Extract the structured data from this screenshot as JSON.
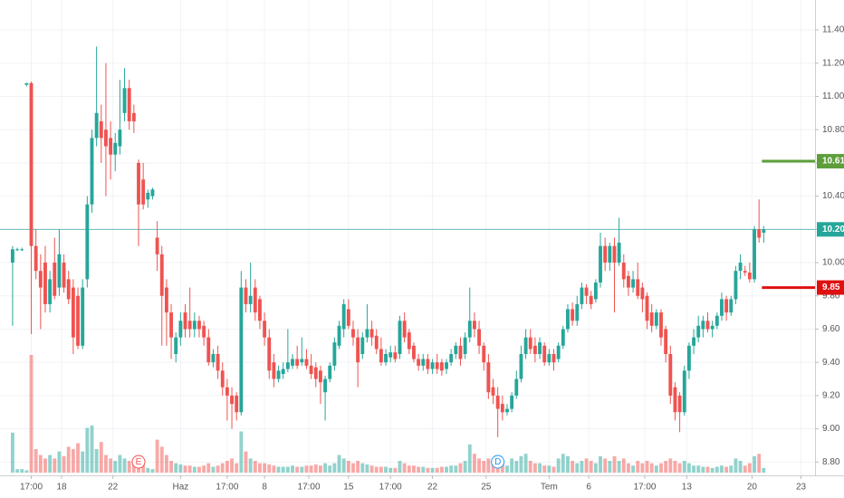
{
  "chart_data": {
    "type": "candlestick",
    "up_color": "#26a69a",
    "down_color": "#ef5350",
    "grid": true,
    "xlim": [
      -2.7,
      172
    ],
    "ylim": [
      8.72,
      11.58
    ],
    "yticks": [
      {
        "value": 8.8,
        "label": "8.80"
      },
      {
        "value": 9.0,
        "label": "9.00"
      },
      {
        "value": 9.2,
        "label": "9.20"
      },
      {
        "value": 9.4,
        "label": "9.40"
      },
      {
        "value": 9.6,
        "label": "9.60"
      },
      {
        "value": 9.8,
        "label": "9.80"
      },
      {
        "value": 10.0,
        "label": "10.00"
      },
      {
        "value": 10.2,
        "label": "10.20"
      },
      {
        "value": 10.4,
        "label": "10.40"
      },
      {
        "value": 10.6,
        "label": "10.60"
      },
      {
        "value": 10.8,
        "label": "10.80"
      },
      {
        "value": 11.0,
        "label": "11.00"
      },
      {
        "value": 11.2,
        "label": "11.20"
      },
      {
        "value": 11.4,
        "label": "11.40"
      }
    ],
    "xticks": [
      {
        "value": 4,
        "label": "17:00"
      },
      {
        "value": 10.5,
        "label": "18"
      },
      {
        "value": 21.5,
        "label": "22"
      },
      {
        "value": 36,
        "label": "Haz"
      },
      {
        "value": 46,
        "label": "17:00"
      },
      {
        "value": 54,
        "label": "8"
      },
      {
        "value": 63.5,
        "label": "17:00"
      },
      {
        "value": 72,
        "label": "15"
      },
      {
        "value": 81,
        "label": "17:00"
      },
      {
        "value": 90,
        "label": "22"
      },
      {
        "value": 101.5,
        "label": "25"
      },
      {
        "value": 115,
        "label": "Tem"
      },
      {
        "value": 123.5,
        "label": "6"
      },
      {
        "value": 135.5,
        "label": "17:00"
      },
      {
        "value": 144.5,
        "label": "13"
      },
      {
        "value": 158.5,
        "label": "20"
      },
      {
        "value": 169,
        "label": "23"
      }
    ],
    "ohlc": [
      [
        10.0,
        10.1,
        9.62,
        10.08
      ],
      [
        10.08,
        10.09,
        10.07,
        10.08
      ],
      [
        10.08,
        10.09,
        10.07,
        10.08
      ],
      [
        11.07,
        11.08,
        11.06,
        11.08
      ],
      [
        11.08,
        11.09,
        9.57,
        10.1
      ],
      [
        10.1,
        10.2,
        9.9,
        9.95
      ],
      [
        9.95,
        10.05,
        9.6,
        9.85
      ],
      [
        10.0,
        10.1,
        9.7,
        9.75
      ],
      [
        9.75,
        9.95,
        9.7,
        9.9
      ],
      [
        10.0,
        10.15,
        9.78,
        9.8
      ],
      [
        9.85,
        10.2,
        9.8,
        10.05
      ],
      [
        10.0,
        10.05,
        9.82,
        9.85
      ],
      [
        9.9,
        9.95,
        9.75,
        9.78
      ],
      [
        9.85,
        9.9,
        9.45,
        9.55
      ],
      [
        9.8,
        9.85,
        9.48,
        9.5
      ],
      [
        9.5,
        9.9,
        9.48,
        9.85
      ],
      [
        9.9,
        10.4,
        9.85,
        10.35
      ],
      [
        10.35,
        10.8,
        10.3,
        10.75
      ],
      [
        10.75,
        11.3,
        10.7,
        10.9
      ],
      [
        10.85,
        10.95,
        10.6,
        10.75
      ],
      [
        10.8,
        11.2,
        10.4,
        10.7
      ],
      [
        10.75,
        10.85,
        10.5,
        10.65
      ],
      [
        10.65,
        10.78,
        10.55,
        10.72
      ],
      [
        10.7,
        11.1,
        10.65,
        10.8
      ],
      [
        10.9,
        11.17,
        10.85,
        11.05
      ],
      [
        11.05,
        11.1,
        10.8,
        10.85
      ],
      [
        10.9,
        10.95,
        10.78,
        10.85
      ],
      [
        10.6,
        10.62,
        10.1,
        10.35
      ],
      [
        10.5,
        10.6,
        10.32,
        10.35
      ],
      [
        10.38,
        10.44,
        10.33,
        10.42
      ],
      [
        10.4,
        10.45,
        10.38,
        10.44
      ],
      [
        10.15,
        10.25,
        9.95,
        10.05
      ],
      [
        10.05,
        10.1,
        9.5,
        9.8
      ],
      [
        9.85,
        9.9,
        9.5,
        9.7
      ],
      [
        9.7,
        9.75,
        9.42,
        9.55
      ],
      [
        9.45,
        9.58,
        9.4,
        9.55
      ],
      [
        9.55,
        9.7,
        9.5,
        9.65
      ],
      [
        9.7,
        9.75,
        9.55,
        9.6
      ],
      [
        9.65,
        9.85,
        9.55,
        9.6
      ],
      [
        9.6,
        9.7,
        9.55,
        9.65
      ],
      [
        9.65,
        9.68,
        9.55,
        9.6
      ],
      [
        9.62,
        9.65,
        9.5,
        9.55
      ],
      [
        9.55,
        9.6,
        9.38,
        9.4
      ],
      [
        9.4,
        9.48,
        9.37,
        9.45
      ],
      [
        9.45,
        9.5,
        9.3,
        9.35
      ],
      [
        9.35,
        9.4,
        9.2,
        9.25
      ],
      [
        9.25,
        9.3,
        9.05,
        9.2
      ],
      [
        9.2,
        9.25,
        9.0,
        9.15
      ],
      [
        9.2,
        9.22,
        9.05,
        9.1
      ],
      [
        9.1,
        9.95,
        9.08,
        9.85
      ],
      [
        9.85,
        9.9,
        9.7,
        9.75
      ],
      [
        9.75,
        10.0,
        9.7,
        9.8
      ],
      [
        9.85,
        9.9,
        9.65,
        9.7
      ],
      [
        9.78,
        9.8,
        9.6,
        9.65
      ],
      [
        9.65,
        9.7,
        9.5,
        9.55
      ],
      [
        9.55,
        9.6,
        9.3,
        9.35
      ],
      [
        9.4,
        9.45,
        9.25,
        9.3
      ],
      [
        9.3,
        9.38,
        9.28,
        9.35
      ],
      [
        9.33,
        9.4,
        9.3,
        9.36
      ],
      [
        9.36,
        9.6,
        9.34,
        9.4
      ],
      [
        9.38,
        9.45,
        9.36,
        9.42
      ],
      [
        9.42,
        9.5,
        9.36,
        9.38
      ],
      [
        9.4,
        9.55,
        9.38,
        9.42
      ],
      [
        9.42,
        9.48,
        9.36,
        9.38
      ],
      [
        9.38,
        9.45,
        9.3,
        9.33
      ],
      [
        9.37,
        9.4,
        9.25,
        9.3
      ],
      [
        9.35,
        9.38,
        9.15,
        9.28
      ],
      [
        9.22,
        9.32,
        9.05,
        9.3
      ],
      [
        9.3,
        9.4,
        9.28,
        9.38
      ],
      [
        9.38,
        9.55,
        9.35,
        9.52
      ],
      [
        9.5,
        9.65,
        9.48,
        9.62
      ],
      [
        9.6,
        9.78,
        9.55,
        9.75
      ],
      [
        9.72,
        9.78,
        9.6,
        9.62
      ],
      [
        9.6,
        9.65,
        9.5,
        9.55
      ],
      [
        9.55,
        9.6,
        9.25,
        9.4
      ],
      [
        9.45,
        9.58,
        9.42,
        9.55
      ],
      [
        9.55,
        9.75,
        9.52,
        9.6
      ],
      [
        9.6,
        9.65,
        9.5,
        9.55
      ],
      [
        9.56,
        9.6,
        9.45,
        9.48
      ],
      [
        9.48,
        9.55,
        9.38,
        9.4
      ],
      [
        9.4,
        9.48,
        9.38,
        9.45
      ],
      [
        9.43,
        9.5,
        9.4,
        9.46
      ],
      [
        9.46,
        9.5,
        9.4,
        9.42
      ],
      [
        9.45,
        9.68,
        9.42,
        9.65
      ],
      [
        9.65,
        9.7,
        9.52,
        9.55
      ],
      [
        9.58,
        9.6,
        9.45,
        9.48
      ],
      [
        9.5,
        9.52,
        9.4,
        9.42
      ],
      [
        9.42,
        9.45,
        9.35,
        9.38
      ],
      [
        9.38,
        9.45,
        9.35,
        9.42
      ],
      [
        9.42,
        9.45,
        9.33,
        9.36
      ],
      [
        9.36,
        9.42,
        9.33,
        9.4
      ],
      [
        9.4,
        9.45,
        9.33,
        9.36
      ],
      [
        9.4,
        9.42,
        9.32,
        9.35
      ],
      [
        9.36,
        9.42,
        9.33,
        9.4
      ],
      [
        9.4,
        9.48,
        9.38,
        9.45
      ],
      [
        9.45,
        9.52,
        9.42,
        9.5
      ],
      [
        9.5,
        9.55,
        9.38,
        9.42
      ],
      [
        9.45,
        9.58,
        9.42,
        9.55
      ],
      [
        9.55,
        9.85,
        9.52,
        9.65
      ],
      [
        9.65,
        9.7,
        9.55,
        9.6
      ],
      [
        9.6,
        9.65,
        9.45,
        9.5
      ],
      [
        9.5,
        9.52,
        9.35,
        9.4
      ],
      [
        9.4,
        9.45,
        9.18,
        9.22
      ],
      [
        9.25,
        9.3,
        9.15,
        9.2
      ],
      [
        9.2,
        9.25,
        8.95,
        9.12
      ],
      [
        9.15,
        9.2,
        9.05,
        9.1
      ],
      [
        9.1,
        9.15,
        9.08,
        9.12
      ],
      [
        9.12,
        9.22,
        9.1,
        9.2
      ],
      [
        9.2,
        9.35,
        9.18,
        9.3
      ],
      [
        9.3,
        9.5,
        9.28,
        9.45
      ],
      [
        9.45,
        9.6,
        9.42,
        9.55
      ],
      [
        9.55,
        9.6,
        9.45,
        9.48
      ],
      [
        9.5,
        9.55,
        9.4,
        9.45
      ],
      [
        9.45,
        9.55,
        9.42,
        9.52
      ],
      [
        9.5,
        9.52,
        9.38,
        9.4
      ],
      [
        9.4,
        9.48,
        9.38,
        9.45
      ],
      [
        9.45,
        9.48,
        9.35,
        9.4
      ],
      [
        9.42,
        9.52,
        9.4,
        9.5
      ],
      [
        9.5,
        9.62,
        9.48,
        9.6
      ],
      [
        9.6,
        9.75,
        9.58,
        9.72
      ],
      [
        9.72,
        9.76,
        9.62,
        9.65
      ],
      [
        9.65,
        9.8,
        9.62,
        9.75
      ],
      [
        9.75,
        9.88,
        9.72,
        9.85
      ],
      [
        9.85,
        9.87,
        9.75,
        9.8
      ],
      [
        9.8,
        9.83,
        9.72,
        9.75
      ],
      [
        9.78,
        9.9,
        9.76,
        9.88
      ],
      [
        9.88,
        10.18,
        9.85,
        10.1
      ],
      [
        10.1,
        10.15,
        9.95,
        10.0
      ],
      [
        10.0,
        10.12,
        9.95,
        10.1
      ],
      [
        10.1,
        10.15,
        9.7,
        10.0
      ],
      [
        10.0,
        10.27,
        9.98,
        10.12
      ],
      [
        10.0,
        10.05,
        9.85,
        9.9
      ],
      [
        9.92,
        9.95,
        9.8,
        9.85
      ],
      [
        9.85,
        9.95,
        9.82,
        9.9
      ],
      [
        9.9,
        10.0,
        9.78,
        9.8
      ],
      [
        9.85,
        9.88,
        9.7,
        9.78
      ],
      [
        9.8,
        9.82,
        9.6,
        9.65
      ],
      [
        9.7,
        9.75,
        9.58,
        9.62
      ],
      [
        9.62,
        9.72,
        9.6,
        9.7
      ],
      [
        9.7,
        9.72,
        9.5,
        9.55
      ],
      [
        9.6,
        9.62,
        9.4,
        9.45
      ],
      [
        9.45,
        9.5,
        9.15,
        9.2
      ],
      [
        9.25,
        9.28,
        9.05,
        9.1
      ],
      [
        9.2,
        9.22,
        8.98,
        9.1
      ],
      [
        9.1,
        9.38,
        9.08,
        9.35
      ],
      [
        9.35,
        9.52,
        9.3,
        9.5
      ],
      [
        9.5,
        9.6,
        9.45,
        9.55
      ],
      [
        9.55,
        9.68,
        9.52,
        9.62
      ],
      [
        9.6,
        9.68,
        9.55,
        9.65
      ],
      [
        9.65,
        9.7,
        9.58,
        9.6
      ],
      [
        9.6,
        9.65,
        9.55,
        9.62
      ],
      [
        9.62,
        9.7,
        9.6,
        9.68
      ],
      [
        9.68,
        9.82,
        9.65,
        9.78
      ],
      [
        9.78,
        9.8,
        9.65,
        9.7
      ],
      [
        9.7,
        9.8,
        9.68,
        9.78
      ],
      [
        9.78,
        9.98,
        9.75,
        9.95
      ],
      [
        9.95,
        10.05,
        9.9,
        10.0
      ],
      [
        9.95,
        9.98,
        9.92,
        9.94
      ],
      [
        9.94,
        10.0,
        9.88,
        9.9
      ],
      [
        9.9,
        10.22,
        9.88,
        10.2
      ],
      [
        10.2,
        10.38,
        10.12,
        10.15
      ],
      [
        10.18,
        10.22,
        10.12,
        10.2
      ]
    ],
    "volume": [
      34,
      3,
      3,
      2,
      100,
      20,
      15,
      12,
      15,
      12,
      18,
      14,
      22,
      20,
      25,
      18,
      38,
      40,
      20,
      26,
      15,
      12,
      10,
      15,
      12,
      10,
      8,
      10,
      6,
      4,
      3,
      28,
      22,
      15,
      10,
      8,
      7,
      6,
      6,
      5,
      5,
      6,
      8,
      5,
      6,
      8,
      10,
      12,
      8,
      35,
      18,
      12,
      10,
      8,
      8,
      7,
      6,
      5,
      5,
      5,
      6,
      5,
      5,
      6,
      6,
      7,
      6,
      8,
      6,
      8,
      15,
      12,
      10,
      8,
      10,
      8,
      7,
      6,
      5,
      5,
      5,
      4,
      4,
      10,
      8,
      6,
      6,
      5,
      5,
      4,
      4,
      4,
      5,
      5,
      6,
      6,
      8,
      10,
      24,
      16,
      12,
      10,
      12,
      8,
      10,
      8,
      6,
      12,
      10,
      14,
      16,
      10,
      8,
      8,
      6,
      6,
      5,
      12,
      16,
      14,
      10,
      8,
      10,
      12,
      10,
      8,
      14,
      12,
      10,
      14,
      10,
      12,
      8,
      6,
      10,
      8,
      10,
      8,
      6,
      8,
      10,
      12,
      10,
      8,
      10,
      8,
      6,
      6,
      5,
      5,
      4,
      5,
      6,
      5,
      6,
      12,
      10,
      6,
      8,
      14,
      16,
      4
    ],
    "events": [
      {
        "label": "E",
        "index": 27,
        "color": "#ef5350"
      },
      {
        "label": "D",
        "index": 104,
        "color": "#2196f3"
      }
    ],
    "levels": [
      {
        "value": 10.2,
        "label": "10.20",
        "color": "#26a69a",
        "full": true
      },
      {
        "value": 10.61,
        "color": "#5d9e3a",
        "full": false
      },
      {
        "value": 9.85,
        "color": "#e01010",
        "full": false
      }
    ]
  }
}
